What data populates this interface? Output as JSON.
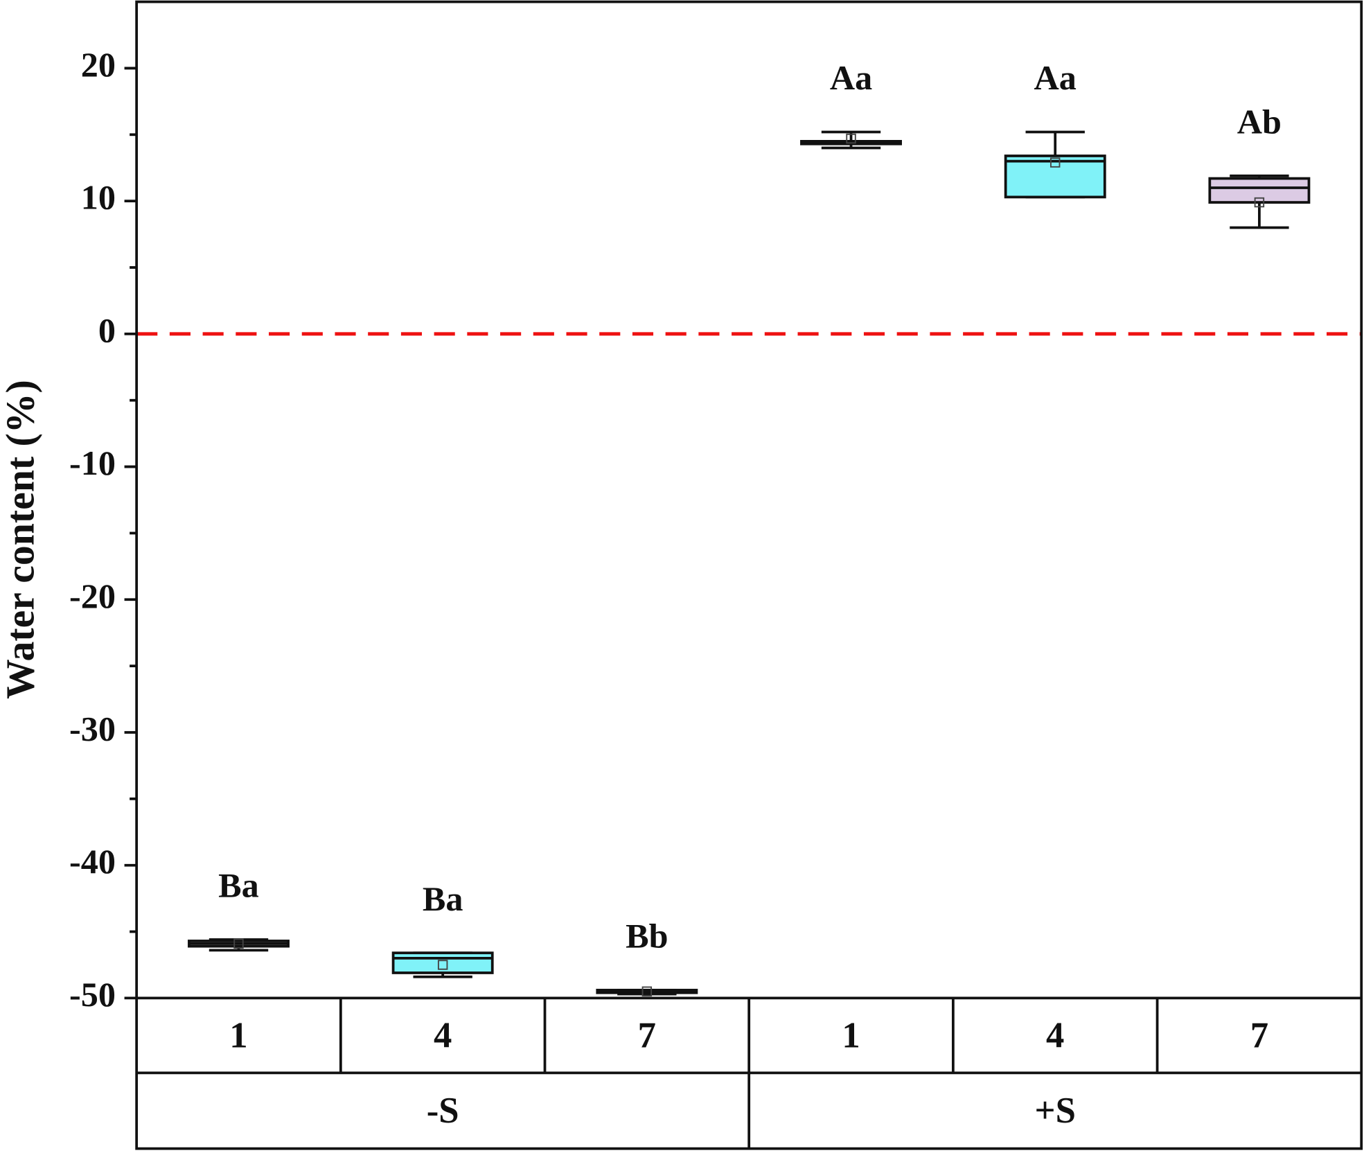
{
  "chart_data": {
    "type": "box",
    "ylabel": "Water content (%)",
    "categories": [
      "1",
      "4",
      "7",
      "1",
      "4",
      "7"
    ],
    "groups": [
      "-S",
      "+S"
    ],
    "boxes": [
      {
        "min": -46.4,
        "q1": -46.1,
        "median": -45.9,
        "q3": -45.7,
        "max": -45.6,
        "mean": -45.9
      },
      {
        "min": -48.4,
        "q1": -48.1,
        "median": -47.0,
        "q3": -46.6,
        "max": -46.6,
        "mean": -47.5
      },
      {
        "min": -49.7,
        "q1": -49.6,
        "median": -49.5,
        "q3": -49.4,
        "max": -49.4,
        "mean": -49.5
      },
      {
        "min": 14.0,
        "q1": 14.3,
        "median": 14.4,
        "q3": 14.5,
        "max": 15.2,
        "mean": 14.7
      },
      {
        "min": 10.3,
        "q1": 10.3,
        "median": 13.0,
        "q3": 13.4,
        "max": 15.2,
        "mean": 12.9
      },
      {
        "min": 8.0,
        "q1": 9.9,
        "median": 11.0,
        "q3": 11.7,
        "max": 11.9,
        "mean": 9.9
      }
    ],
    "colors": [
      "#ffffff",
      "#80f2f8",
      "#dccbe4",
      "#ffffff",
      "#80f2f8",
      "#dccbe4"
    ],
    "annotations": [
      "Ba",
      "Ba",
      "Bb",
      "Aa",
      "Aa",
      "Ab"
    ],
    "reference_line": 0,
    "reference_color": "#ee1111",
    "ylim": [
      -50,
      25
    ],
    "yticks": [
      -50,
      -40,
      -30,
      -20,
      -10,
      0,
      10,
      20
    ]
  }
}
